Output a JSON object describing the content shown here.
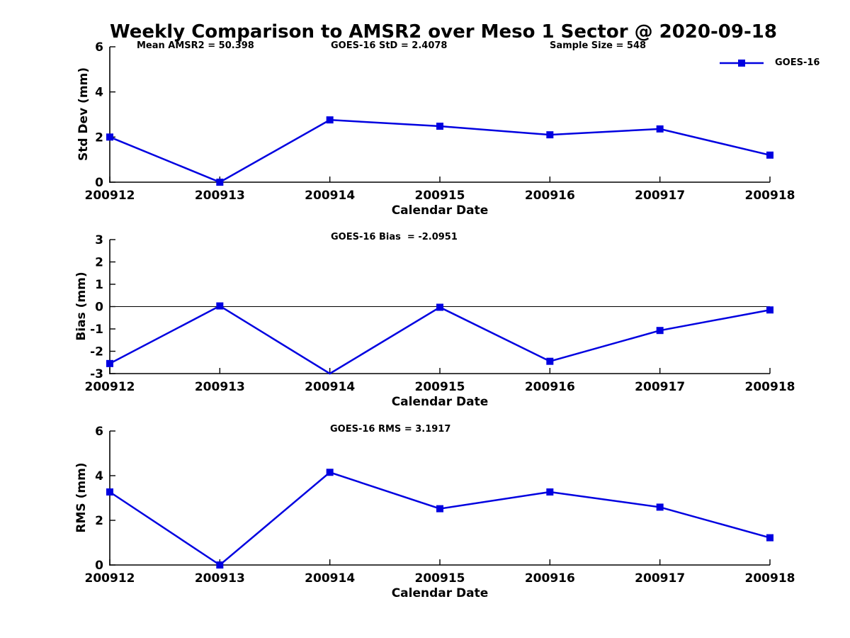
{
  "title": "Weekly Comparison to AMSR2 over Meso 1 Sector @ 2020-09-18",
  "legend": {
    "label": "GOES-16",
    "color": "#0000E0",
    "marker": "square",
    "position": "upper right"
  },
  "x_axis": {
    "label": "Calendar Date"
  },
  "chart_data": [
    {
      "type": "line",
      "ylabel": "Std Dev (mm)",
      "xlabel": "Calendar Date",
      "ylim": [
        0,
        6
      ],
      "yticks": [
        0,
        2,
        4,
        6
      ],
      "categories": [
        "200912",
        "200913",
        "200914",
        "200915",
        "200916",
        "200917",
        "200918"
      ],
      "series": [
        {
          "name": "GOES-16",
          "values": [
            2.0,
            0.0,
            2.76,
            2.48,
            2.1,
            2.36,
            1.2
          ]
        }
      ],
      "zero_line": false,
      "grid": false,
      "annotations": [
        {
          "text": "Mean AMSR2 = 50.398"
        },
        {
          "text": "GOES-16 StD = 2.4078"
        },
        {
          "text": "Sample Size = 548"
        }
      ]
    },
    {
      "type": "line",
      "ylabel": "Bias (mm)",
      "xlabel": "Calendar Date",
      "ylim": [
        -3,
        3
      ],
      "yticks": [
        -3,
        -2,
        -1,
        0,
        1,
        2,
        3
      ],
      "categories": [
        "200912",
        "200913",
        "200914",
        "200915",
        "200916",
        "200917",
        "200918"
      ],
      "series": [
        {
          "name": "GOES-16",
          "values": [
            -2.55,
            0.03,
            -3.1,
            -0.03,
            -2.45,
            -1.07,
            -0.15
          ]
        }
      ],
      "zero_line": true,
      "grid": false,
      "annotations": [
        {
          "text": "GOES-16 Bias  = -2.0951"
        }
      ]
    },
    {
      "type": "line",
      "ylabel": "RMS (mm)",
      "xlabel": "Calendar Date",
      "ylim": [
        0,
        6
      ],
      "yticks": [
        0,
        2,
        4,
        6
      ],
      "categories": [
        "200912",
        "200913",
        "200914",
        "200915",
        "200916",
        "200917",
        "200918"
      ],
      "series": [
        {
          "name": "GOES-16",
          "values": [
            3.27,
            0.0,
            4.15,
            2.52,
            3.27,
            2.59,
            1.22
          ]
        }
      ],
      "zero_line": false,
      "grid": false,
      "annotations": [
        {
          "text": "GOES-16 RMS = 3.1917"
        }
      ]
    }
  ]
}
